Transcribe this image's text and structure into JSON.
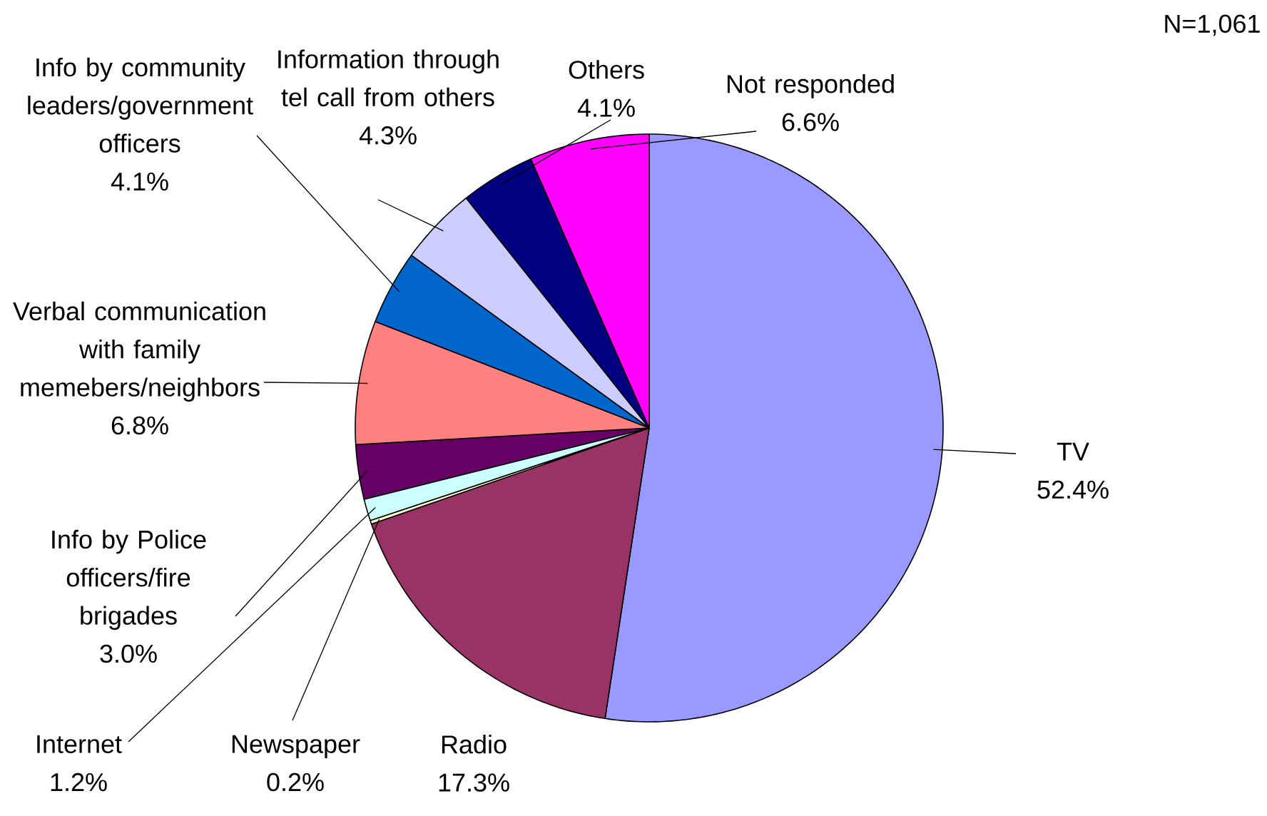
{
  "chart_data": {
    "type": "pie",
    "categories": [
      "TV",
      "Radio",
      "Newspaper",
      "Internet",
      "Info by Police officers/fire brigades",
      "Verbal communication with family memebers/neighbors",
      "Info by community leaders/government officers",
      "Information through tel call from others",
      "Others",
      "Not responded"
    ],
    "values": [
      52.4,
      17.3,
      0.2,
      1.2,
      3.0,
      6.8,
      4.1,
      4.3,
      4.1,
      6.6
    ],
    "value_labels": [
      "52.4%",
      "17.3%",
      "0.2%",
      "1.2%",
      "3.0%",
      "6.8%",
      "4.1%",
      "4.3%",
      "4.1%",
      "6.6%"
    ],
    "colors": [
      "#9999ff",
      "#993366",
      "#ffffcc",
      "#ccffff",
      "#660066",
      "#ff8080",
      "#0066cc",
      "#ccccff",
      "#000080",
      "#ff00ff"
    ],
    "annotations": [
      "N=1,061"
    ]
  }
}
